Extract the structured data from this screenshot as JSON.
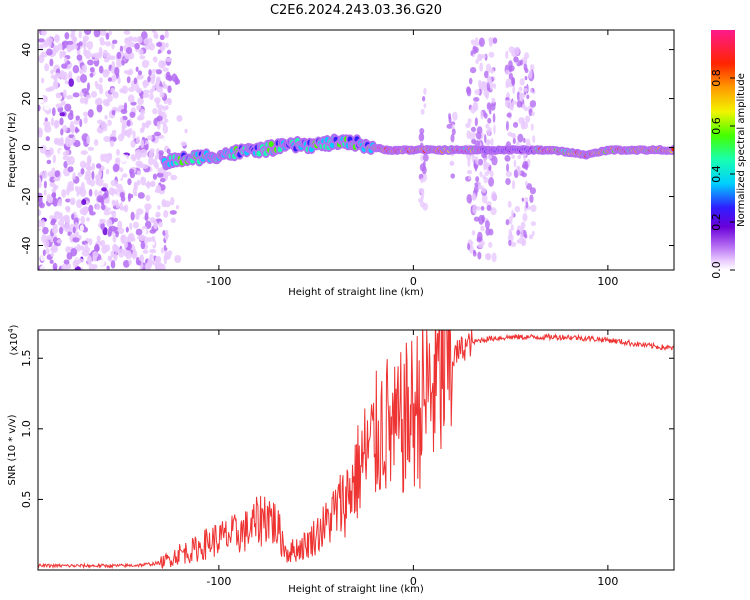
{
  "chart_data": [
    {
      "type": "heatmap",
      "title": "C2E6.2024.243.03.36.G20",
      "xlabel": "Height of straight line (km)",
      "ylabel": "Frequency (Hz)",
      "xlim": [
        -193,
        134
      ],
      "ylim": [
        -50,
        48
      ],
      "xticks": [
        -100,
        0,
        100
      ],
      "yticks": [
        -40,
        -20,
        0,
        20,
        40
      ],
      "grid": false,
      "colorbar": {
        "label": "Normalized spectral amplitude",
        "range": [
          0,
          1
        ],
        "ticks": [
          0.0,
          0.2,
          0.4,
          0.6,
          0.8
        ],
        "colors": [
          "#ffffff",
          "#e9c9ff",
          "#b46cf2",
          "#6a00d8",
          "#2f1eff",
          "#00cfff",
          "#18ffb0",
          "#44ff00",
          "#f2f400",
          "#ff9a00",
          "#ff2400",
          "#ff1a8c"
        ]
      },
      "trace": {
        "x": [
          -128,
          -120,
          -110,
          -100,
          -90,
          -80,
          -70,
          -60,
          -50,
          -40,
          -30,
          -20,
          -15,
          0,
          10,
          20,
          35,
          50,
          62,
          70,
          80,
          90,
          100,
          110,
          120,
          134
        ],
        "y": [
          -6,
          -5,
          -4,
          -3,
          -2,
          -1,
          0,
          1,
          1,
          2,
          2,
          0,
          -1,
          -1,
          -1,
          -1,
          -1,
          -1,
          -1,
          -1,
          -2,
          -3,
          -1,
          -1,
          -1,
          -1
        ]
      }
    },
    {
      "type": "line",
      "xlabel": "Height of straight line (km)",
      "ylabel": "SNR (10 * v/v)",
      "ylabel_multiplier": "(x10",
      "ylabel_multiplier_exp": "4",
      "ylabel_multiplier_close": ")",
      "xlim": [
        -193,
        134
      ],
      "ylim": [
        0,
        1.7
      ],
      "xticks": [
        -100,
        0,
        100
      ],
      "yticks": [
        0.5,
        1.0,
        1.5
      ],
      "ytick_labels": [
        "0.5",
        "1.0",
        "1.5"
      ],
      "grid": false,
      "color": "#ee3333",
      "series": [
        {
          "x": [
            -193,
            -170,
            -150,
            -140,
            -130,
            -125,
            -120,
            -115,
            -110,
            -105,
            -100,
            -95,
            -90,
            -85,
            -80,
            -75,
            -70,
            -65,
            -60,
            -55,
            -50,
            -45,
            -40,
            -35,
            -30,
            -25,
            -20,
            -15,
            -10,
            -5,
            0,
            5,
            10,
            15,
            20,
            25,
            30,
            35,
            40,
            50,
            60,
            70,
            80,
            90,
            100,
            110,
            120,
            134
          ],
          "y": [
            0.03,
            0.03,
            0.03,
            0.035,
            0.05,
            0.08,
            0.12,
            0.13,
            0.16,
            0.2,
            0.22,
            0.24,
            0.26,
            0.28,
            0.34,
            0.4,
            0.3,
            0.12,
            0.15,
            0.18,
            0.25,
            0.32,
            0.42,
            0.5,
            0.65,
            0.8,
            0.9,
            1.05,
            0.95,
            1.05,
            1.12,
            1.2,
            1.3,
            1.4,
            1.5,
            1.57,
            1.61,
            1.63,
            1.64,
            1.65,
            1.65,
            1.65,
            1.65,
            1.64,
            1.63,
            1.61,
            1.59,
            1.57
          ]
        }
      ]
    }
  ]
}
